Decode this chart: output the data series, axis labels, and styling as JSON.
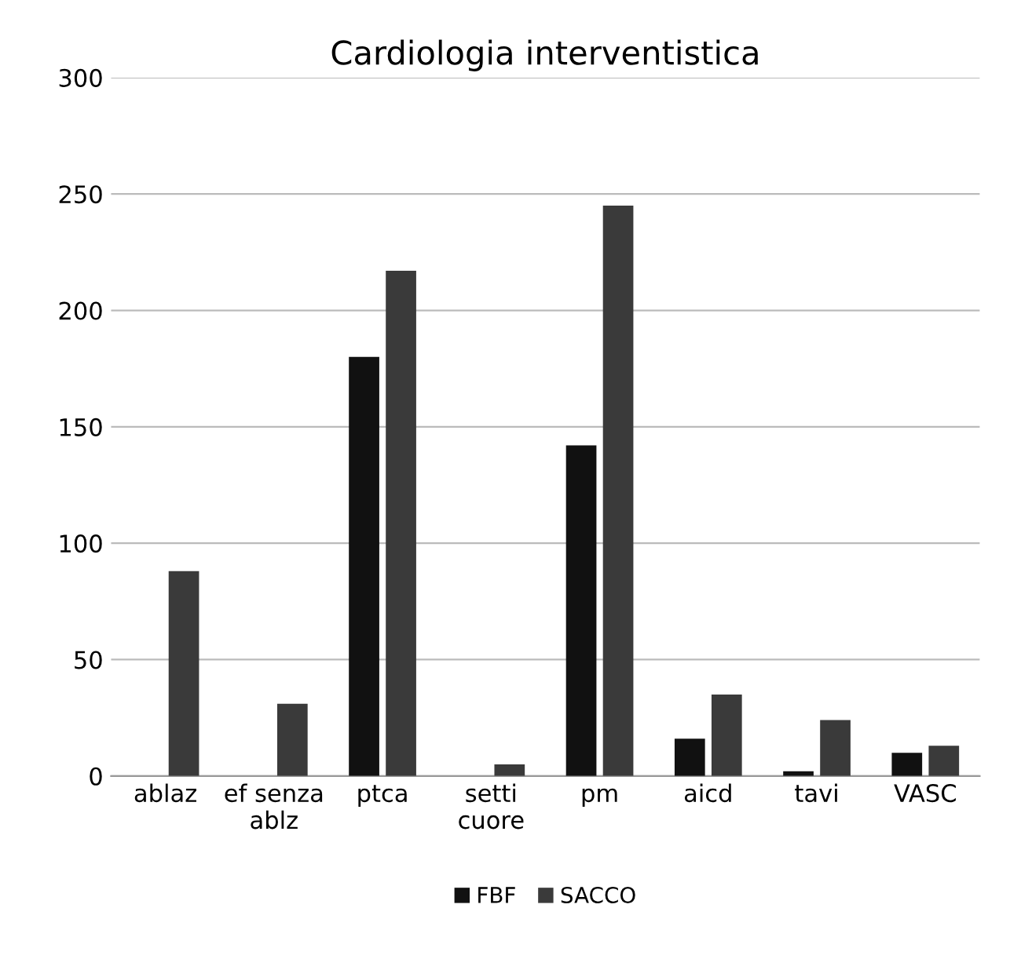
{
  "chart_data": {
    "type": "bar",
    "title": "Cardiologia interventistica",
    "categories": [
      "ablaz",
      "ef senza\nablz",
      "ptca",
      "setti\ncuore",
      "pm",
      "aicd",
      "tavi",
      "VASC"
    ],
    "series": [
      {
        "name": "FBF",
        "color": "#111111",
        "values": [
          0,
          0,
          180,
          0,
          142,
          16,
          2,
          10
        ]
      },
      {
        "name": "SACCO",
        "color": "#3a3a3a",
        "values": [
          88,
          31,
          217,
          5,
          245,
          35,
          24,
          13
        ]
      }
    ],
    "ylim": [
      0,
      300
    ],
    "yticks": [
      0,
      50,
      100,
      150,
      200,
      250,
      300
    ],
    "grid": "y",
    "legend": "bottom"
  }
}
